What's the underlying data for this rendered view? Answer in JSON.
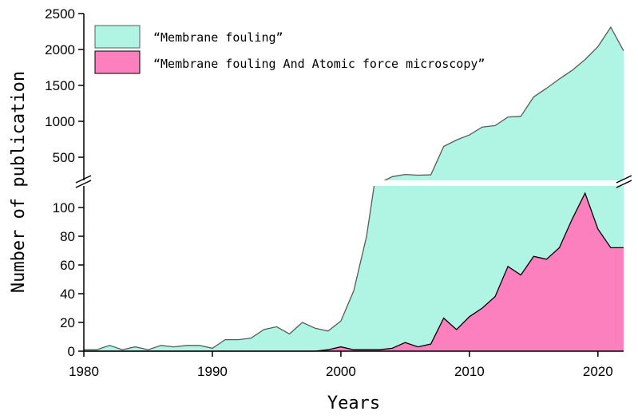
{
  "chart_data": {
    "type": "area",
    "title": "",
    "xlabel": "Years",
    "ylabel": "Number of publication",
    "xlim": [
      1980,
      2022
    ],
    "ylim_lower": [
      0,
      110
    ],
    "ylim_upper": [
      300,
      2500
    ],
    "broken_y_axis": true,
    "grid": false,
    "legend_position": "top-left",
    "x_ticks": [
      "1980",
      "1990",
      "2000",
      "2010",
      "2020"
    ],
    "y_ticks_lower": [
      "0",
      "20",
      "40",
      "60",
      "80",
      "100"
    ],
    "y_ticks_upper": [
      "500",
      "1000",
      "1500",
      "2000",
      "2500"
    ],
    "colors": {
      "fouling": "#b0f5e4",
      "afm": "#fc7fbe",
      "outline": "#5a5a5a",
      "afm_outline": "#000000"
    },
    "x": [
      1980,
      1981,
      1982,
      1983,
      1984,
      1985,
      1986,
      1987,
      1988,
      1989,
      1990,
      1991,
      1992,
      1993,
      1994,
      1995,
      1996,
      1997,
      1998,
      1999,
      2000,
      2001,
      2002,
      2003,
      2004,
      2005,
      2006,
      2007,
      2008,
      2009,
      2010,
      2011,
      2012,
      2013,
      2014,
      2015,
      2016,
      2017,
      2018,
      2019,
      2020,
      2021,
      2022
    ],
    "series": [
      {
        "name": "“Membrane fouling”",
        "values": [
          1,
          1,
          4,
          1,
          3,
          1,
          4,
          3,
          4,
          4,
          2,
          8,
          8,
          9,
          15,
          17,
          12,
          20,
          16,
          14,
          21,
          42,
          80,
          140,
          230,
          260,
          250,
          255,
          650,
          740,
          810,
          920,
          940,
          1060,
          1070,
          1340,
          1460,
          1590,
          1710,
          1860,
          2040,
          2310,
          1980
        ]
      },
      {
        "name": "“Membrane fouling And Atomic force microscopy”",
        "values": [
          0,
          0,
          0,
          0,
          0,
          0,
          0,
          0,
          0,
          0,
          0,
          0,
          0,
          0,
          0,
          0,
          0,
          0,
          0,
          1,
          3,
          1,
          1,
          1,
          2,
          6,
          3,
          5,
          23,
          15,
          24,
          30,
          38,
          59,
          53,
          66,
          64,
          72,
          92,
          110,
          85,
          72,
          72
        ]
      }
    ]
  }
}
